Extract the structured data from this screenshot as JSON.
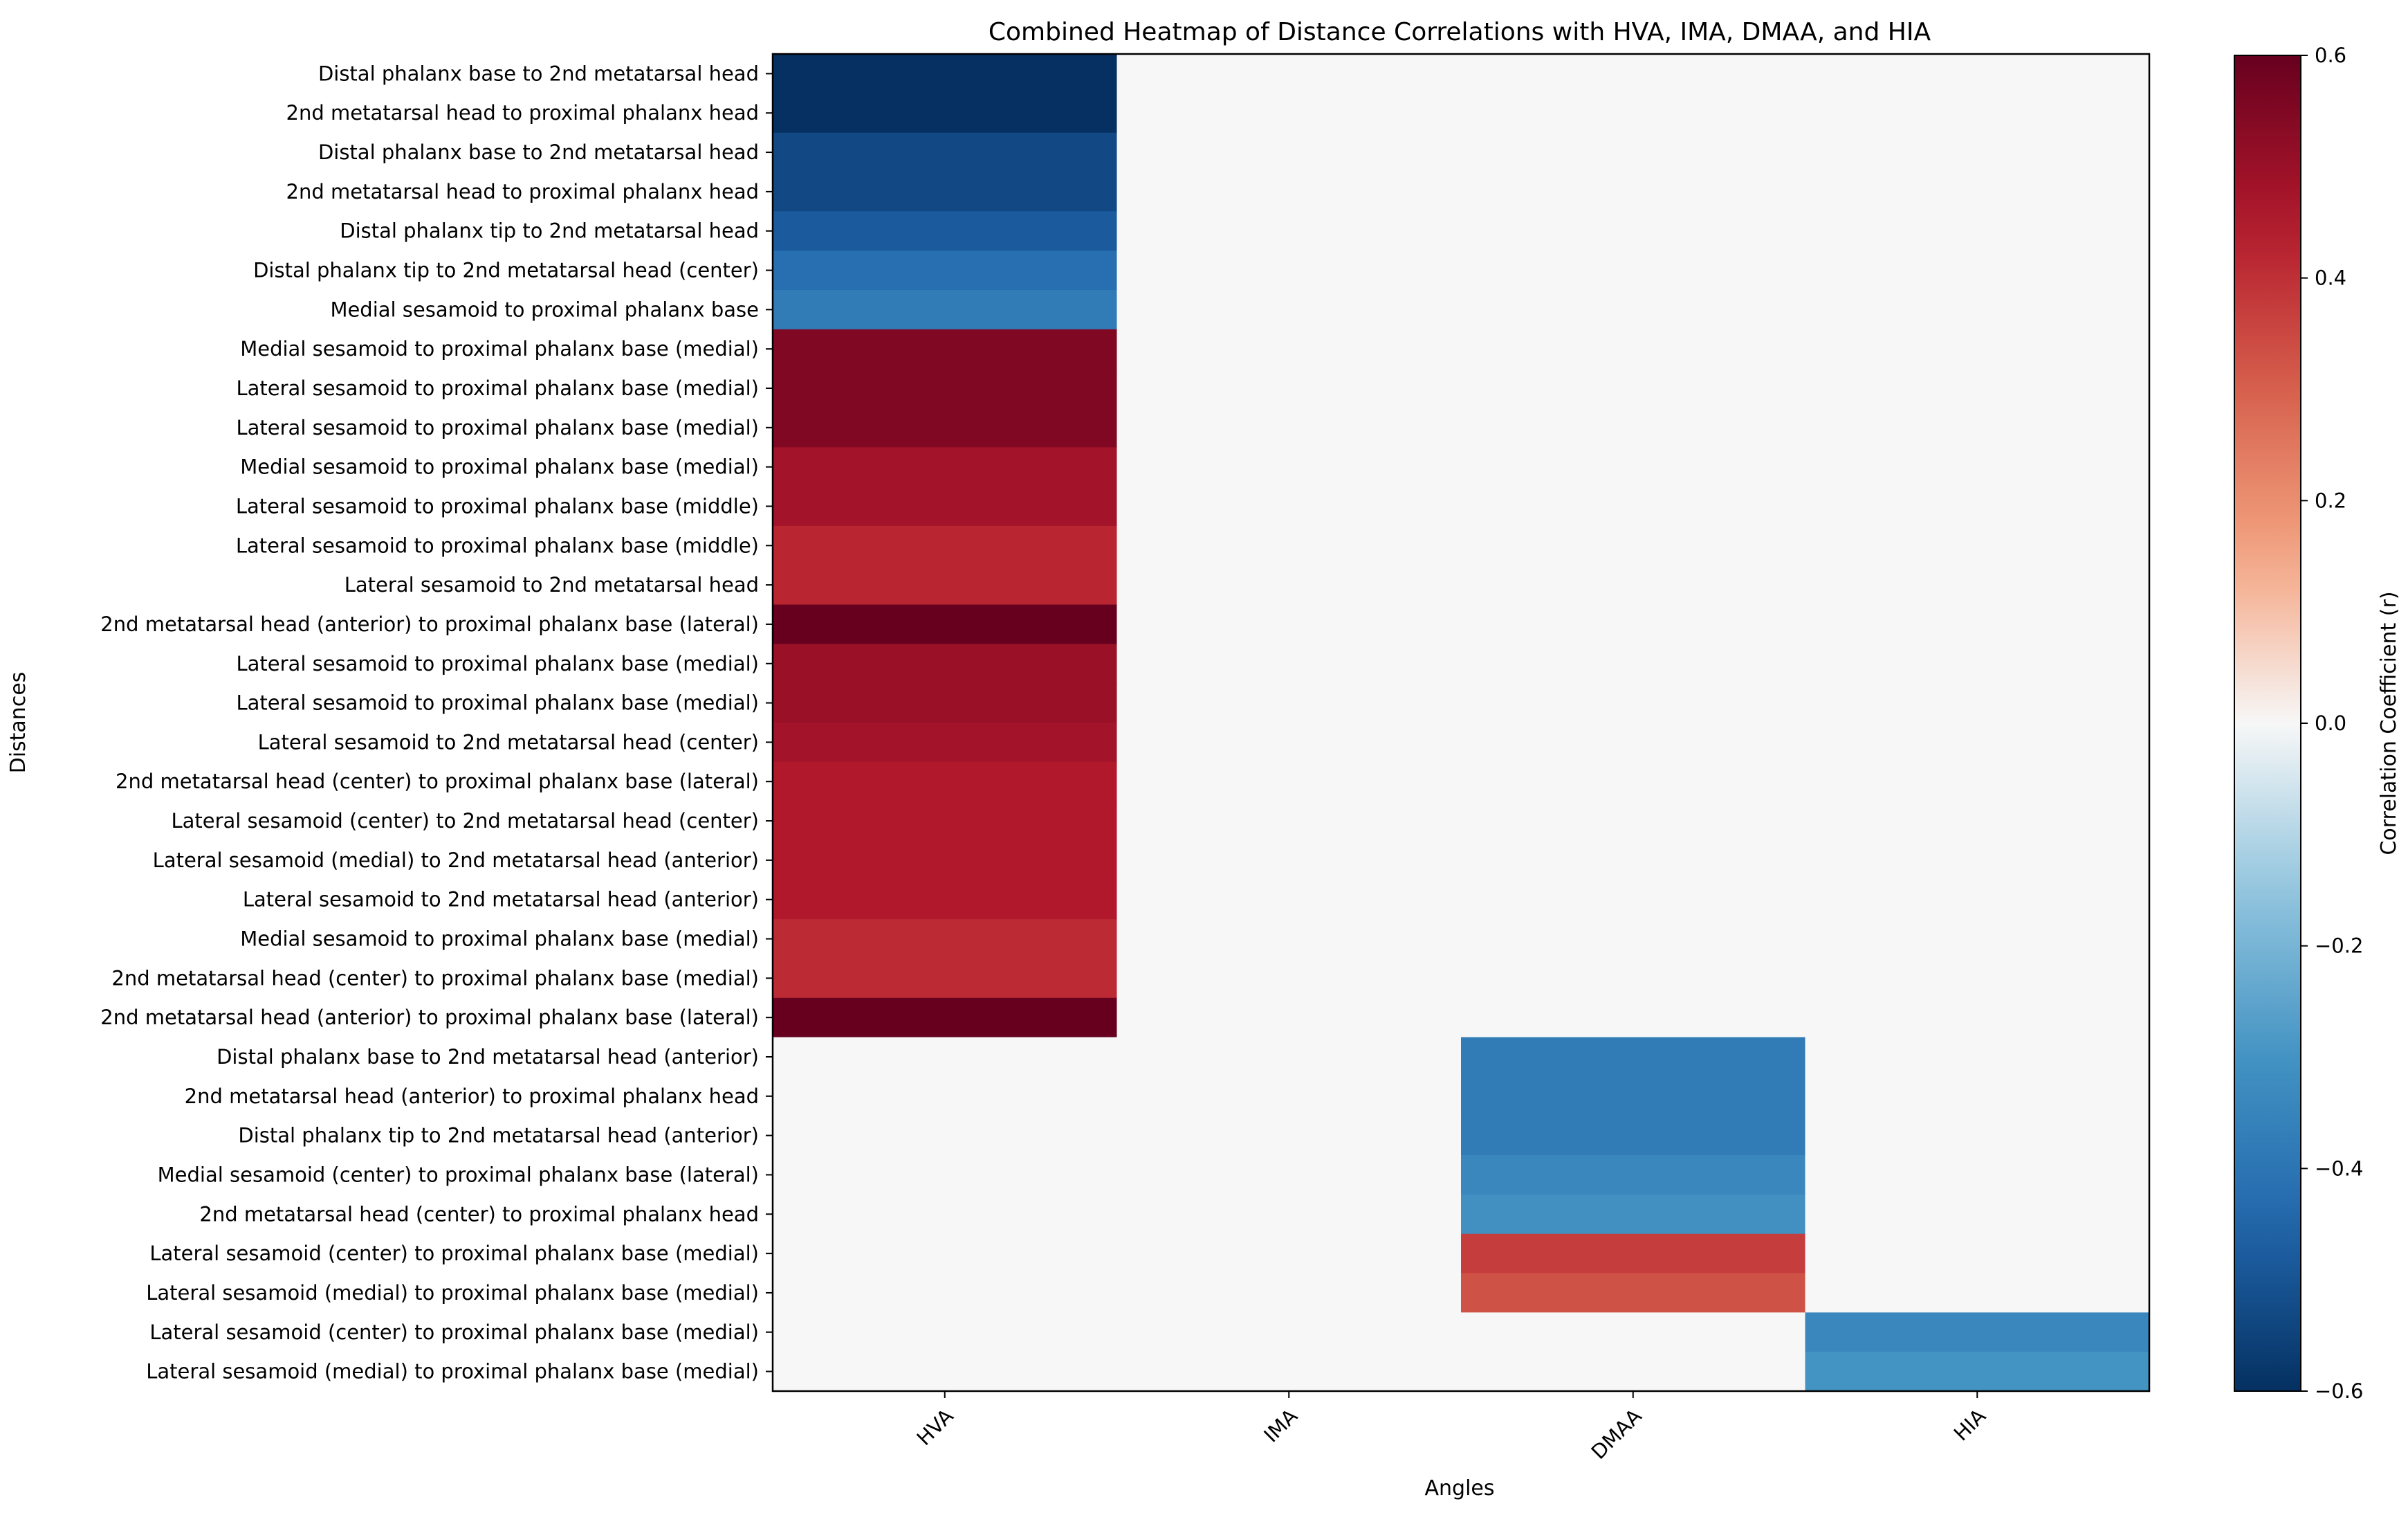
{
  "chart_data": {
    "type": "heatmap",
    "title": "Combined Heatmap of Distance Correlations with HVA, IMA, DMAA, and HIA",
    "xlabel": "Angles",
    "ylabel": "Distances",
    "colorbar_label": "Correlation Coefficient (r)",
    "colormap": "RdBu_r",
    "vmin": -0.6,
    "vmax": 0.6,
    "colorbar_ticks": [
      -0.6,
      -0.4,
      -0.2,
      0.0,
      0.2,
      0.4,
      0.6
    ],
    "colorbar_tick_labels": [
      "−0.6",
      "−0.4",
      "−0.2",
      "0.0",
      "0.2",
      "0.4",
      "0.6"
    ],
    "columns": [
      "HVA",
      "IMA",
      "DMAA",
      "HIA"
    ],
    "rows": [
      "Distal phalanx base to 2nd metatarsal head",
      "2nd metatarsal head to proximal phalanx head",
      "Distal phalanx base to 2nd metatarsal head",
      "2nd metatarsal head to proximal phalanx head",
      "Distal phalanx tip to 2nd metatarsal head",
      "Distal phalanx tip to 2nd metatarsal head (center)",
      "Medial sesamoid to proximal phalanx base",
      "Medial sesamoid to proximal phalanx base (medial)",
      "Lateral sesamoid to proximal phalanx base (medial)",
      "Lateral sesamoid to proximal phalanx base (medial)",
      "Medial sesamoid to proximal phalanx base (medial)",
      "Lateral sesamoid to proximal phalanx base (middle)",
      "Lateral sesamoid to proximal phalanx base (middle)",
      "Lateral sesamoid to 2nd metatarsal head",
      "2nd metatarsal head (anterior) to proximal phalanx base (lateral)",
      "Lateral sesamoid to proximal phalanx base (medial)",
      "Lateral sesamoid to proximal phalanx base (medial)",
      "Lateral sesamoid to 2nd metatarsal head (center)",
      "2nd metatarsal head (center) to proximal phalanx base (lateral)",
      "Lateral sesamoid (center) to 2nd metatarsal head (center)",
      "Lateral sesamoid (medial) to 2nd metatarsal head (anterior)",
      "Lateral sesamoid to 2nd metatarsal head (anterior)",
      "Medial sesamoid to proximal phalanx base (medial)",
      "2nd metatarsal head (center) to proximal phalanx base (medial)",
      "2nd metatarsal head (anterior) to proximal phalanx base (lateral)",
      "Distal phalanx base to 2nd metatarsal head (anterior)",
      "2nd metatarsal head (anterior) to proximal phalanx head",
      "Distal phalanx tip to 2nd metatarsal head (anterior)",
      "Medial sesamoid (center) to proximal phalanx base (lateral)",
      "2nd metatarsal head (center) to proximal phalanx head",
      "Lateral sesamoid (center) to proximal phalanx base (medial)",
      "Lateral sesamoid (medial) to proximal phalanx base (medial)",
      "Lateral sesamoid (center) to proximal phalanx base (medial)",
      "Lateral sesamoid (medial) to proximal phalanx base (medial)"
    ],
    "values": [
      [
        -0.6,
        0,
        0,
        0
      ],
      [
        -0.6,
        0,
        0,
        0
      ],
      [
        -0.53,
        0,
        0,
        0
      ],
      [
        -0.53,
        0,
        0,
        0
      ],
      [
        -0.48,
        0,
        0,
        0
      ],
      [
        -0.42,
        0,
        0,
        0
      ],
      [
        -0.38,
        0,
        0,
        0
      ],
      [
        0.55,
        0,
        0,
        0
      ],
      [
        0.55,
        0,
        0,
        0
      ],
      [
        0.55,
        0,
        0,
        0
      ],
      [
        0.48,
        0,
        0,
        0
      ],
      [
        0.48,
        0,
        0,
        0
      ],
      [
        0.42,
        0,
        0,
        0
      ],
      [
        0.42,
        0,
        0,
        0
      ],
      [
        0.6,
        0,
        0,
        0
      ],
      [
        0.5,
        0,
        0,
        0
      ],
      [
        0.5,
        0,
        0,
        0
      ],
      [
        0.48,
        0,
        0,
        0
      ],
      [
        0.45,
        0,
        0,
        0
      ],
      [
        0.45,
        0,
        0,
        0
      ],
      [
        0.45,
        0,
        0,
        0
      ],
      [
        0.45,
        0,
        0,
        0
      ],
      [
        0.41,
        0,
        0,
        0
      ],
      [
        0.41,
        0,
        0,
        0
      ],
      [
        0.6,
        0,
        0,
        0
      ],
      [
        0,
        0,
        -0.38,
        0
      ],
      [
        0,
        0,
        -0.38,
        0
      ],
      [
        0,
        0,
        -0.38,
        0
      ],
      [
        0,
        0,
        -0.34,
        0
      ],
      [
        0,
        0,
        -0.31,
        0
      ],
      [
        0,
        0,
        0.37,
        0
      ],
      [
        0,
        0,
        0.33,
        0
      ],
      [
        0,
        0,
        0,
        -0.34
      ],
      [
        0,
        0,
        0,
        -0.3
      ]
    ],
    "missing_value_note": "0 = no significant correlation (shown as light grey background)"
  }
}
